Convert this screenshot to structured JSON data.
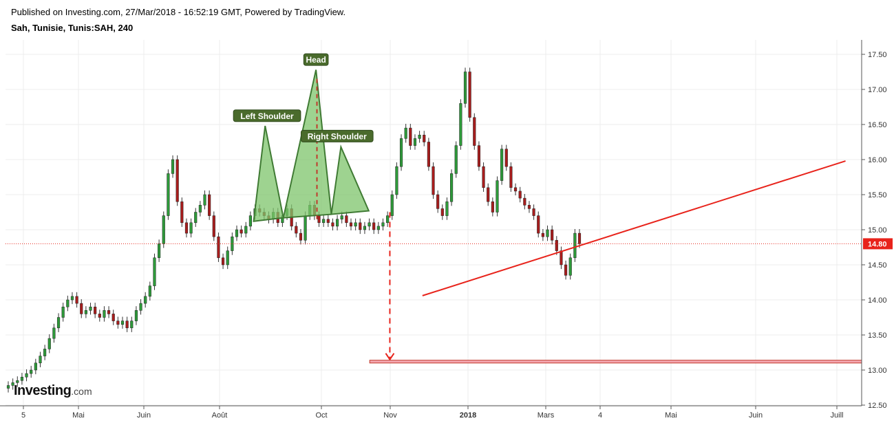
{
  "header": {
    "published": "Published on Investing.com, 27/Mar/2018 - 16:52:19 GMT, Powered by TradingView.",
    "symbol": "Sah, Tunisie, Tunis:SAH, 240"
  },
  "logo": {
    "brand": "Investing",
    "suffix": ".com"
  },
  "colors": {
    "up": "#2e9a3a",
    "down": "#a81d1d",
    "trend": "#e8231b",
    "pattern_fill": "#7dc46b",
    "label_bg": "#4a6b2c",
    "last_price": "#e8231b"
  },
  "chart_data": {
    "type": "candlestick",
    "y_axis": {
      "min": 12.5,
      "max": 17.5,
      "ticks": [
        "17.50",
        "17.00",
        "16.50",
        "16.00",
        "15.50",
        "15.00",
        "14.50",
        "14.00",
        "13.50",
        "13.00",
        "12.50"
      ],
      "position": "right"
    },
    "x_axis": {
      "tick_labels": [
        "5",
        "Mai",
        "Juin",
        "Août",
        "Oct",
        "Nov",
        "2018",
        "Mars",
        "4",
        "Mai",
        "Juin",
        "Juill"
      ],
      "bold": [
        "2018"
      ]
    },
    "grid": true,
    "last_price": "14.80",
    "close_series": [
      12.78,
      12.82,
      12.85,
      12.9,
      12.95,
      13.0,
      13.1,
      13.2,
      13.3,
      13.45,
      13.6,
      13.75,
      13.9,
      14.0,
      14.05,
      13.95,
      13.8,
      13.85,
      13.9,
      13.8,
      13.75,
      13.85,
      13.8,
      13.7,
      13.65,
      13.7,
      13.6,
      13.7,
      13.85,
      13.95,
      14.05,
      14.2,
      14.6,
      14.8,
      15.2,
      15.8,
      16.0,
      15.4,
      15.1,
      14.95,
      15.1,
      15.25,
      15.35,
      15.5,
      15.2,
      14.9,
      14.6,
      14.5,
      14.7,
      14.9,
      15.0,
      14.95,
      15.05,
      15.2,
      15.3,
      15.25,
      15.2,
      15.15,
      15.25,
      15.1,
      15.2,
      15.3,
      15.05,
      14.95,
      14.85,
      15.2,
      15.35,
      15.2,
      15.1,
      15.15,
      15.1,
      15.05,
      15.15,
      15.2,
      15.1,
      15.05,
      15.1,
      15.0,
      15.05,
      15.1,
      15.0,
      15.05,
      15.1,
      15.2,
      15.5,
      15.9,
      16.3,
      16.45,
      16.2,
      16.3,
      16.35,
      16.25,
      15.9,
      15.5,
      15.3,
      15.2,
      15.4,
      15.8,
      16.2,
      16.8,
      17.25,
      16.6,
      16.2,
      15.9,
      15.6,
      15.4,
      15.25,
      15.7,
      16.15,
      15.9,
      15.6,
      15.55,
      15.45,
      15.35,
      15.3,
      15.2,
      14.95,
      14.9,
      15.0,
      14.85,
      14.7,
      14.5,
      14.35,
      14.6,
      14.95,
      14.8
    ],
    "neckline": {
      "from": [
        "2018-04-25",
        14.06
      ],
      "to": [
        "2019-07-10",
        15.98
      ]
    },
    "head_and_shoulders_polygons": [
      [
        [
          "2017-10-31",
          15.12
        ],
        [
          "2017-11-12",
          16.48
        ],
        [
          "2017-12-01",
          15.17
        ]
      ],
      [
        [
          "2017-12-01",
          15.17
        ],
        [
          "2018-01-04",
          17.28
        ],
        [
          "2018-01-20",
          15.22
        ]
      ],
      [
        [
          "2018-01-20",
          15.22
        ],
        [
          "2018-01-30",
          16.18
        ],
        [
          "2018-02-28",
          15.27
        ]
      ]
    ],
    "head_drop_line": {
      "x": "2018-01-05",
      "from": 17.15,
      "to": 15.15
    },
    "target_arrow": {
      "x": "2018-03-22",
      "from": 15.25,
      "to": 13.15
    },
    "target_zone": {
      "from_x": "2018-03-01",
      "y_low": 13.1,
      "y_high": 13.14
    },
    "annotations": [
      {
        "text": "Left Shoulder",
        "x": "2017-11-14",
        "y": 16.62
      },
      {
        "text": "Head",
        "x": "2018-01-04",
        "y": 17.42
      },
      {
        "text": "Right Shoulder",
        "x": "2018-01-26",
        "y": 16.33
      }
    ]
  }
}
